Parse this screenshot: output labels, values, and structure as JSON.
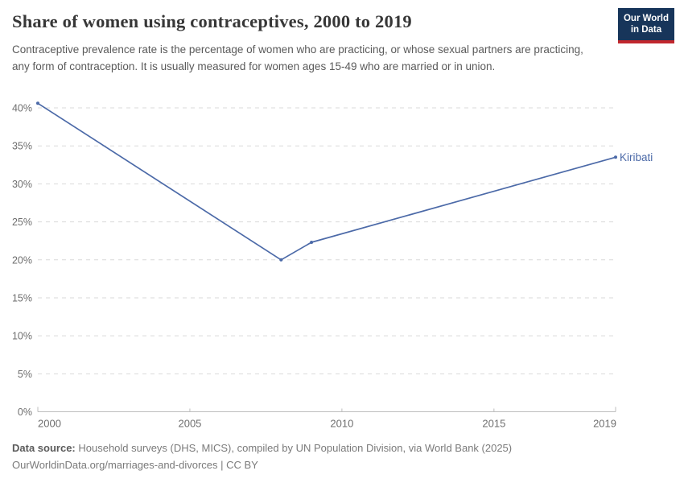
{
  "header": {
    "title": "Share of women using contraceptives, 2000 to 2019",
    "subtitle": "Contraceptive prevalence rate is the percentage of women who are practicing, or whose sexual partners are practicing, any form of contraception. It is usually measured for women ages 15-49 who are married or in union.",
    "logo": {
      "line1": "Our World",
      "line2": "in Data"
    }
  },
  "chart_data": {
    "type": "line",
    "title": "Share of women using contraceptives, 2000 to 2019",
    "series": [
      {
        "name": "Kiribati",
        "points": [
          [
            2000,
            40.6
          ],
          [
            2008,
            20.0
          ],
          [
            2009,
            22.3
          ],
          [
            2019,
            33.5
          ]
        ]
      }
    ],
    "x_ticks": [
      2000,
      2005,
      2010,
      2015,
      2019
    ],
    "y_ticks": [
      0,
      5,
      10,
      15,
      20,
      25,
      30,
      35,
      40
    ],
    "y_tick_suffix": "%",
    "xlim": [
      2000,
      2019
    ],
    "ylim": [
      0,
      40
    ],
    "grid": "horizontal-dashed",
    "legend_position": "end-of-line-label",
    "end_label": "Kiribati"
  },
  "footer": {
    "source_label": "Data source:",
    "source_text": " Household surveys (DHS, MICS), compiled by UN Population Division, via World Bank (2025)",
    "license_text": "OurWorldinData.org/marriages-and-divorces | CC BY"
  },
  "colors": {
    "line": "#4c6aa8",
    "end_label": "#4c6aa8",
    "grid": "#d9d9d9",
    "axis": "#bdbdbd",
    "tick_text": "#6e6e6e",
    "logo_bg": "#17355a",
    "logo_red": "#c1272d"
  }
}
